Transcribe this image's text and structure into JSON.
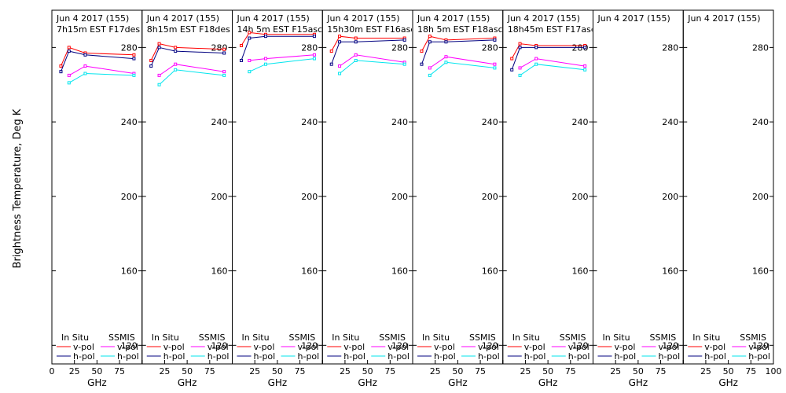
{
  "figure": {
    "ylabel": "Brightness Temperature, Deg K",
    "xlabel": "GHz",
    "ylim": [
      110,
      300
    ],
    "xlim": [
      0,
      100
    ],
    "yticks": [
      120,
      160,
      200,
      240,
      280
    ],
    "xticks": [
      0,
      25,
      50,
      75,
      100
    ],
    "xtick_labels": [
      "0",
      "25",
      "50",
      "75",
      "100"
    ],
    "colors": {
      "insitu_v": "#ff0000",
      "insitu_h": "#000080",
      "ssmis_v": "#ff00ff",
      "ssmis_h": "#00e5ee"
    },
    "legend": {
      "insitu_title": "In Situ",
      "ssmis_title": "SSMIS",
      "v_label": "v-pol",
      "h_label": "h-pol"
    }
  },
  "chart_data": [
    {
      "type": "line",
      "title": "Jun 4 2017 (155)",
      "subtitle": "7h15m EST F17des",
      "series": [
        {
          "name": "In Situ v-pol",
          "x": [
            10,
            19,
            37,
            91
          ],
          "y": [
            270,
            280,
            277,
            276
          ]
        },
        {
          "name": "In Situ h-pol",
          "x": [
            10,
            19,
            37,
            91
          ],
          "y": [
            267,
            278,
            276,
            274
          ]
        },
        {
          "name": "SSMIS v-pol",
          "x": [
            19,
            37,
            91
          ],
          "y": [
            265,
            270,
            266
          ]
        },
        {
          "name": "SSMIS h-pol",
          "x": [
            19,
            37,
            91
          ],
          "y": [
            261,
            266,
            265
          ]
        }
      ]
    },
    {
      "type": "line",
      "title": "Jun 4 2017 (155)",
      "subtitle": "8h15m EST F18des",
      "series": [
        {
          "name": "In Situ v-pol",
          "x": [
            10,
            19,
            37,
            91
          ],
          "y": [
            273,
            282,
            280,
            279
          ]
        },
        {
          "name": "In Situ h-pol",
          "x": [
            10,
            19,
            37,
            91
          ],
          "y": [
            270,
            280,
            278,
            277
          ]
        },
        {
          "name": "SSMIS v-pol",
          "x": [
            19,
            37,
            91
          ],
          "y": [
            265,
            271,
            267
          ]
        },
        {
          "name": "SSMIS h-pol",
          "x": [
            19,
            37,
            91
          ],
          "y": [
            260,
            268,
            265
          ]
        }
      ]
    },
    {
      "type": "line",
      "title": "Jun 4 2017 (155)",
      "subtitle": "14h 5m EST F15asc",
      "series": [
        {
          "name": "In Situ v-pol",
          "x": [
            10,
            19,
            37,
            91
          ],
          "y": [
            281,
            288,
            287,
            287
          ]
        },
        {
          "name": "In Situ h-pol",
          "x": [
            10,
            19,
            37,
            91
          ],
          "y": [
            273,
            285,
            286,
            286
          ]
        },
        {
          "name": "SSMIS v-pol",
          "x": [
            19,
            37,
            91
          ],
          "y": [
            273,
            274,
            276
          ]
        },
        {
          "name": "SSMIS h-pol",
          "x": [
            19,
            37,
            91
          ],
          "y": [
            267,
            271,
            274
          ]
        }
      ]
    },
    {
      "type": "line",
      "title": "Jun 4 2017 (155)",
      "subtitle": "15h30m EST F16asc",
      "series": [
        {
          "name": "In Situ v-pol",
          "x": [
            10,
            19,
            37,
            91
          ],
          "y": [
            278,
            286,
            285,
            285
          ]
        },
        {
          "name": "In Situ h-pol",
          "x": [
            10,
            19,
            37,
            91
          ],
          "y": [
            271,
            283,
            283,
            284
          ]
        },
        {
          "name": "SSMIS v-pol",
          "x": [
            19,
            37,
            91
          ],
          "y": [
            270,
            276,
            272
          ]
        },
        {
          "name": "SSMIS h-pol",
          "x": [
            19,
            37,
            91
          ],
          "y": [
            266,
            273,
            271
          ]
        }
      ]
    },
    {
      "type": "line",
      "title": "Jun 4 2017 (155)",
      "subtitle": "18h 5m EST F18asc",
      "series": [
        {
          "name": "In Situ v-pol",
          "x": [
            10,
            19,
            37,
            91
          ],
          "y": [
            278,
            286,
            284,
            285
          ]
        },
        {
          "name": "In Situ h-pol",
          "x": [
            10,
            19,
            37,
            91
          ],
          "y": [
            271,
            283,
            283,
            284
          ]
        },
        {
          "name": "SSMIS v-pol",
          "x": [
            19,
            37,
            91
          ],
          "y": [
            269,
            275,
            271
          ]
        },
        {
          "name": "SSMIS h-pol",
          "x": [
            19,
            37,
            91
          ],
          "y": [
            265,
            272,
            269
          ]
        }
      ]
    },
    {
      "type": "line",
      "title": "Jun 4 2017 (155)",
      "subtitle": "18h45m EST F17asc",
      "series": [
        {
          "name": "In Situ v-pol",
          "x": [
            10,
            19,
            37,
            91
          ],
          "y": [
            274,
            282,
            281,
            281
          ]
        },
        {
          "name": "In Situ h-pol",
          "x": [
            10,
            19,
            37,
            91
          ],
          "y": [
            268,
            280,
            280,
            280
          ]
        },
        {
          "name": "SSMIS v-pol",
          "x": [
            19,
            37,
            91
          ],
          "y": [
            269,
            274,
            270
          ]
        },
        {
          "name": "SSMIS h-pol",
          "x": [
            19,
            37,
            91
          ],
          "y": [
            265,
            271,
            268
          ]
        }
      ]
    },
    {
      "type": "line",
      "title": "Jun 4 2017 (155)",
      "subtitle": "",
      "series": []
    },
    {
      "type": "line",
      "title": "Jun 4 2017 (155)",
      "subtitle": "",
      "series": []
    }
  ]
}
